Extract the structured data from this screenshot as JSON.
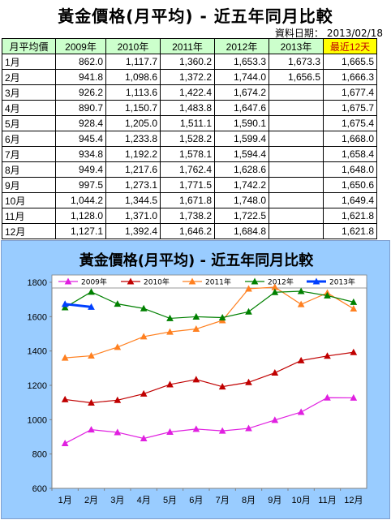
{
  "page": {
    "title": "黃金價格(月平均) - 近五年同月比較",
    "date_label": "資料日期：",
    "date_value": "2013/02/18"
  },
  "table": {
    "headers": [
      "月平均價",
      "2009年",
      "2010年",
      "2011年",
      "2012年",
      "2013年",
      "最近12天"
    ],
    "rows": [
      [
        "1月",
        "862.0",
        "1,117.7",
        "1,360.2",
        "1,653.3",
        "1,673.3",
        "1,665.5"
      ],
      [
        "2月",
        "941.8",
        "1,098.6",
        "1,372.2",
        "1,744.0",
        "1,656.5",
        "1,666.3"
      ],
      [
        "3月",
        "926.2",
        "1,113.6",
        "1,422.4",
        "1,674.2",
        "",
        "1,677.4"
      ],
      [
        "4月",
        "890.7",
        "1,150.7",
        "1,483.8",
        "1,647.6",
        "",
        "1,675.7"
      ],
      [
        "5月",
        "928.4",
        "1,205.0",
        "1,511.1",
        "1,590.1",
        "",
        "1,675.4"
      ],
      [
        "6月",
        "945.4",
        "1,233.8",
        "1,528.2",
        "1,599.4",
        "",
        "1,668.0"
      ],
      [
        "7月",
        "934.8",
        "1,192.2",
        "1,578.1",
        "1,594.4",
        "",
        "1,658.4"
      ],
      [
        "8月",
        "949.4",
        "1,217.6",
        "1,762.4",
        "1,628.6",
        "",
        "1,648.0"
      ],
      [
        "9月",
        "997.5",
        "1,273.1",
        "1,771.5",
        "1,742.2",
        "",
        "1,650.6"
      ],
      [
        "10月",
        "1,044.2",
        "1,344.5",
        "1,671.8",
        "1,748.0",
        "",
        "1,649.4"
      ],
      [
        "11月",
        "1,128.0",
        "1,371.0",
        "1,738.2",
        "1,722.5",
        "",
        "1,621.8"
      ],
      [
        "12月",
        "1,127.1",
        "1,392.4",
        "1,646.2",
        "1,684.8",
        "",
        "1,621.8"
      ]
    ]
  },
  "colors": {
    "2009年": "#e020e0",
    "2010年": "#c00000",
    "2011年": "#ff8020",
    "2012年": "#008000",
    "2013年": "#0040ff"
  },
  "chart_data": {
    "type": "line",
    "title": "黃金價格(月平均) - 近五年同月比較",
    "categories": [
      "1月",
      "2月",
      "3月",
      "4月",
      "5月",
      "6月",
      "7月",
      "8月",
      "9月",
      "10月",
      "11月",
      "12月"
    ],
    "series": [
      {
        "name": "2009年",
        "values": [
          862.0,
          941.8,
          926.2,
          890.7,
          928.4,
          945.4,
          934.8,
          949.4,
          997.5,
          1044.2,
          1128.0,
          1127.1
        ]
      },
      {
        "name": "2010年",
        "values": [
          1117.7,
          1098.6,
          1113.6,
          1150.7,
          1205.0,
          1233.8,
          1192.2,
          1217.6,
          1273.1,
          1344.5,
          1371.0,
          1392.4
        ]
      },
      {
        "name": "2011年",
        "values": [
          1360.2,
          1372.2,
          1422.4,
          1483.8,
          1511.1,
          1528.2,
          1578.1,
          1762.4,
          1771.5,
          1671.8,
          1738.2,
          1646.2
        ]
      },
      {
        "name": "2012年",
        "values": [
          1653.3,
          1744.0,
          1674.2,
          1647.6,
          1590.1,
          1599.4,
          1594.4,
          1628.6,
          1742.2,
          1748.0,
          1722.5,
          1684.8
        ]
      },
      {
        "name": "2013年",
        "values": [
          1673.3,
          1656.5,
          null,
          null,
          null,
          null,
          null,
          null,
          null,
          null,
          null,
          null
        ]
      }
    ],
    "ylim": [
      600,
      1800
    ],
    "yticks": [
      600,
      800,
      1000,
      1200,
      1400,
      1600,
      1800
    ],
    "grid": false,
    "legend": "top"
  }
}
